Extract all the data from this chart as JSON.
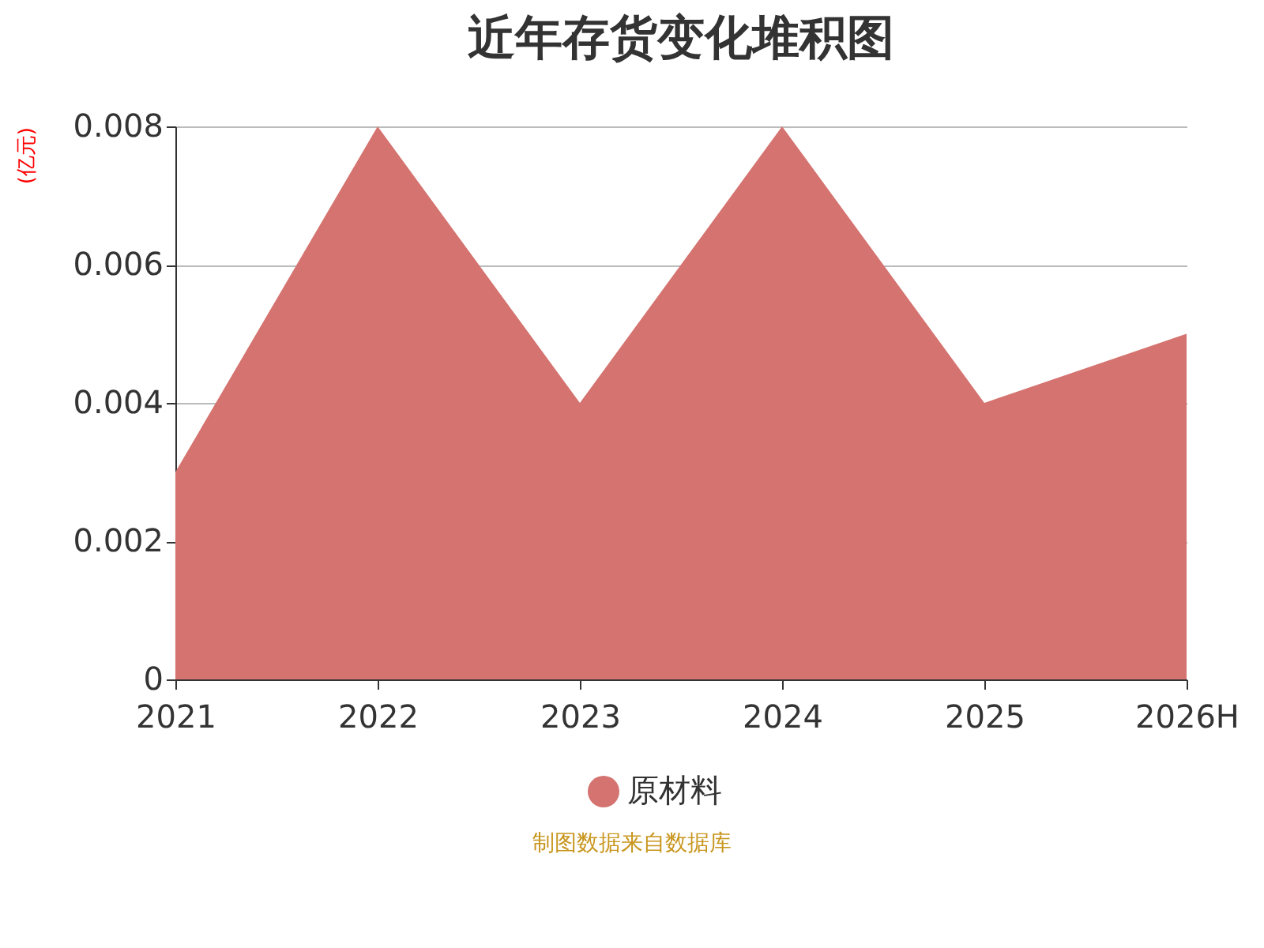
{
  "chart_data": {
    "type": "area",
    "title": "近年存货变化堆积图",
    "ylabel": "(亿元)",
    "categories": [
      "2021",
      "2022",
      "2023",
      "2024",
      "2025",
      "2026H"
    ],
    "series": [
      {
        "name": "原材料",
        "color": "#d4736f",
        "values": [
          0.003,
          0.008,
          0.004,
          0.008,
          0.004,
          0.005
        ]
      }
    ],
    "ylim": [
      0,
      0.008
    ],
    "yticks": [
      0,
      0.002,
      0.004,
      0.006,
      0.008
    ],
    "grid": "y",
    "legend": "bottom",
    "annotations": [
      "制图数据来自数据库"
    ]
  }
}
